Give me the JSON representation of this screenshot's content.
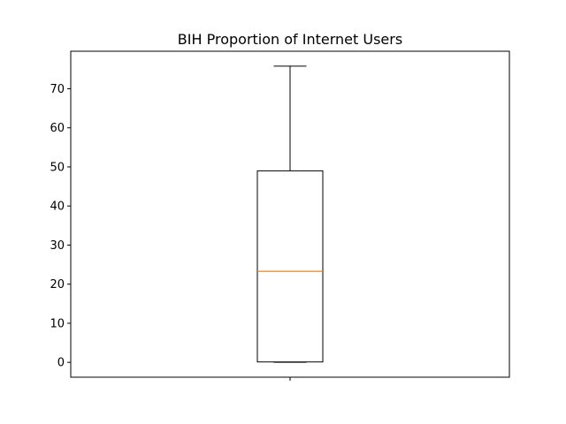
{
  "chart_data": {
    "type": "box",
    "title": "BIH Proportion of Internet Users",
    "xlabel": "",
    "ylabel": "",
    "ylim": [
      -3.8,
      79.6
    ],
    "yticks": [
      0,
      10,
      20,
      30,
      40,
      50,
      60,
      70
    ],
    "xtick_labels": [
      ""
    ],
    "grid": false,
    "legend": "none",
    "series": [
      {
        "whisker_low": 0,
        "q1": 0.1,
        "median": 23.3,
        "q3": 49,
        "whisker_high": 75.8
      }
    ],
    "colors": {
      "box": "#000000",
      "median": "#ff7f0e",
      "axes": "#000000"
    }
  }
}
